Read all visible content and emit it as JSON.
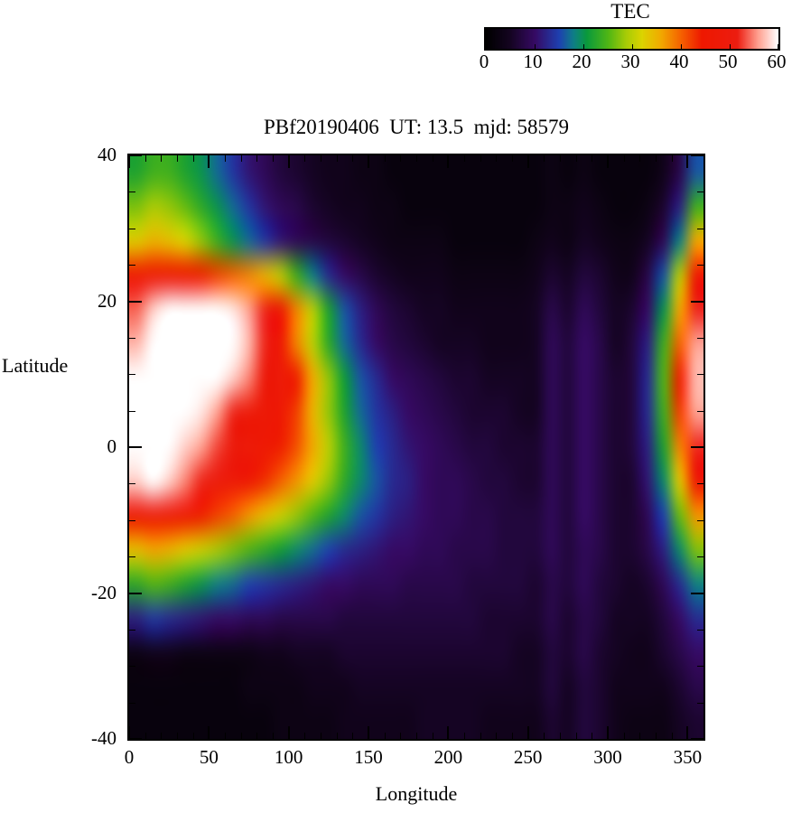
{
  "title": "PBf20190406  UT: 13.5  mjd: 58579",
  "colorbar": {
    "title": "TEC",
    "tick_labels": [
      "0",
      "10",
      "20",
      "30",
      "40",
      "50",
      "60"
    ],
    "min": 0,
    "max": 60
  },
  "axes": {
    "xlabel": "Longitude",
    "ylabel": "Latitude",
    "xticks": [
      0,
      50,
      100,
      150,
      200,
      250,
      300,
      350
    ],
    "yticks": [
      40,
      20,
      0,
      -20,
      -40
    ],
    "xlim": [
      0,
      360
    ],
    "ylim": [
      -40,
      40
    ]
  },
  "chart_data": {
    "type": "heatmap",
    "title": "PBf20190406  UT: 13.5  mjd: 58579",
    "xlabel": "Longitude",
    "ylabel": "Latitude",
    "colorbar_label": "TEC",
    "xlim": [
      0,
      360
    ],
    "ylim": [
      -40,
      40
    ],
    "zlim": [
      0,
      60
    ],
    "lon": [
      0,
      10,
      20,
      30,
      40,
      50,
      60,
      70,
      80,
      90,
      100,
      110,
      120,
      130,
      140,
      150,
      160,
      170,
      180,
      190,
      200,
      210,
      220,
      230,
      240,
      250,
      260,
      270,
      280,
      290,
      300,
      310,
      320,
      330,
      340,
      350
    ],
    "lat": [
      40,
      35,
      30,
      25,
      20,
      15,
      10,
      5,
      0,
      -5,
      -10,
      -15,
      -20,
      -25,
      -30,
      -35,
      -40
    ],
    "values": [
      [
        22,
        24,
        24,
        22,
        20,
        17,
        14,
        11,
        9,
        7,
        6,
        5,
        4,
        4,
        3,
        3,
        2,
        2,
        2,
        2,
        2,
        2,
        2,
        2,
        2,
        2,
        3,
        2,
        3,
        2,
        2,
        2,
        2,
        4,
        8,
        16
      ],
      [
        27,
        29,
        28,
        26,
        23,
        20,
        17,
        14,
        11,
        9,
        8,
        6,
        5,
        4,
        4,
        3,
        3,
        2,
        2,
        2,
        2,
        2,
        2,
        2,
        2,
        2,
        3,
        3,
        4,
        3,
        2,
        2,
        3,
        6,
        12,
        24
      ],
      [
        33,
        35,
        34,
        32,
        28,
        24,
        20,
        17,
        14,
        11,
        9,
        8,
        7,
        6,
        5,
        4,
        3,
        3,
        3,
        3,
        2,
        2,
        2,
        2,
        2,
        3,
        4,
        3,
        5,
        4,
        3,
        3,
        5,
        9,
        18,
        36
      ],
      [
        46,
        48,
        48,
        46,
        44,
        42,
        40,
        38,
        35,
        30,
        24,
        18,
        13,
        10,
        8,
        6,
        5,
        4,
        4,
        4,
        3,
        3,
        3,
        3,
        3,
        4,
        6,
        5,
        7,
        6,
        4,
        4,
        8,
        16,
        30,
        46
      ],
      [
        54,
        58,
        60,
        60,
        60,
        60,
        59,
        56,
        52,
        46,
        38,
        30,
        22,
        16,
        12,
        9,
        7,
        6,
        5,
        5,
        4,
        4,
        4,
        4,
        4,
        5,
        8,
        6,
        9,
        7,
        5,
        6,
        10,
        20,
        36,
        52
      ],
      [
        57,
        60,
        60,
        60,
        60,
        60,
        60,
        57,
        52,
        46,
        38,
        30,
        23,
        17,
        13,
        10,
        8,
        7,
        6,
        5,
        5,
        5,
        4,
        4,
        4,
        5,
        9,
        7,
        10,
        8,
        5,
        7,
        12,
        24,
        40,
        56
      ],
      [
        60,
        60,
        60,
        60,
        60,
        60,
        58,
        55,
        50,
        48,
        44,
        36,
        28,
        21,
        16,
        13,
        10,
        9,
        8,
        7,
        6,
        6,
        5,
        5,
        5,
        5,
        9,
        7,
        10,
        8,
        6,
        7,
        13,
        25,
        44,
        57
      ],
      [
        60,
        60,
        60,
        60,
        59,
        56,
        52,
        49,
        47,
        46,
        42,
        35,
        28,
        22,
        17,
        14,
        12,
        10,
        9,
        8,
        7,
        6,
        6,
        6,
        5,
        5,
        9,
        7,
        10,
        8,
        6,
        7,
        13,
        24,
        42,
        56
      ],
      [
        60,
        60,
        60,
        58,
        56,
        53,
        50,
        48,
        46,
        44,
        41,
        36,
        30,
        24,
        19,
        15,
        13,
        11,
        10,
        9,
        8,
        7,
        7,
        6,
        6,
        6,
        9,
        7,
        10,
        8,
        6,
        7,
        12,
        22,
        38,
        52
      ],
      [
        58,
        60,
        58,
        55,
        52,
        50,
        48,
        46,
        43,
        40,
        37,
        33,
        28,
        23,
        19,
        16,
        13,
        12,
        10,
        9,
        9,
        8,
        7,
        7,
        6,
        6,
        9,
        7,
        10,
        8,
        6,
        6,
        11,
        19,
        33,
        46
      ],
      [
        47,
        49,
        48,
        46,
        44,
        42,
        40,
        37,
        34,
        31,
        28,
        25,
        22,
        19,
        16,
        14,
        12,
        11,
        10,
        9,
        9,
        8,
        8,
        7,
        7,
        7,
        9,
        7,
        10,
        8,
        6,
        6,
        9,
        15,
        26,
        37
      ],
      [
        34,
        36,
        35,
        33,
        31,
        29,
        27,
        25,
        23,
        21,
        19,
        17,
        15,
        13,
        12,
        11,
        10,
        10,
        9,
        9,
        8,
        8,
        8,
        7,
        7,
        7,
        9,
        7,
        9,
        8,
        6,
        6,
        8,
        12,
        19,
        27
      ],
      [
        23,
        25,
        24,
        22,
        20,
        18,
        17,
        15,
        14,
        13,
        12,
        11,
        10,
        10,
        9,
        9,
        9,
        8,
        8,
        8,
        8,
        7,
        7,
        7,
        7,
        6,
        8,
        7,
        9,
        7,
        6,
        5,
        6,
        9,
        13,
        18
      ],
      [
        12,
        14,
        13,
        12,
        11,
        10,
        10,
        9,
        9,
        8,
        8,
        8,
        8,
        7,
        7,
        7,
        7,
        7,
        7,
        7,
        7,
        7,
        6,
        6,
        6,
        6,
        8,
        6,
        8,
        7,
        5,
        5,
        5,
        7,
        10,
        13
      ],
      [
        3,
        4,
        4,
        3,
        3,
        3,
        3,
        3,
        4,
        4,
        5,
        5,
        5,
        6,
        6,
        6,
        6,
        6,
        6,
        6,
        6,
        6,
        6,
        6,
        5,
        5,
        7,
        6,
        8,
        6,
        5,
        4,
        4,
        6,
        8,
        10
      ],
      [
        2,
        2,
        2,
        2,
        2,
        2,
        2,
        3,
        3,
        3,
        3,
        4,
        4,
        4,
        5,
        5,
        5,
        5,
        5,
        5,
        5,
        5,
        5,
        5,
        5,
        5,
        7,
        5,
        7,
        6,
        4,
        4,
        4,
        4,
        6,
        8
      ],
      [
        2,
        2,
        2,
        2,
        2,
        2,
        2,
        2,
        2,
        3,
        3,
        3,
        3,
        4,
        4,
        4,
        4,
        4,
        5,
        5,
        5,
        5,
        4,
        4,
        4,
        4,
        6,
        5,
        7,
        6,
        4,
        3,
        3,
        3,
        5,
        6
      ]
    ],
    "colormap": [
      {
        "t": 0.0,
        "c": "#000000"
      },
      {
        "t": 0.08,
        "c": "#140420"
      },
      {
        "t": 0.167,
        "c": "#360a64"
      },
      {
        "t": 0.25,
        "c": "#1e40b0"
      },
      {
        "t": 0.3,
        "c": "#0e7f86"
      },
      {
        "t": 0.345,
        "c": "#0a9a3c"
      },
      {
        "t": 0.42,
        "c": "#52b714"
      },
      {
        "t": 0.48,
        "c": "#a8cc06"
      },
      {
        "t": 0.535,
        "c": "#dcd400"
      },
      {
        "t": 0.6,
        "c": "#f2a800"
      },
      {
        "t": 0.67,
        "c": "#f55f00"
      },
      {
        "t": 0.74,
        "c": "#ee1800"
      },
      {
        "t": 0.86,
        "c": "#ec1c10"
      },
      {
        "t": 0.93,
        "c": "#ff9d8d"
      },
      {
        "t": 1.0,
        "c": "#ffffff"
      }
    ],
    "legend_position": "top-right-colorbar",
    "grid": false
  }
}
